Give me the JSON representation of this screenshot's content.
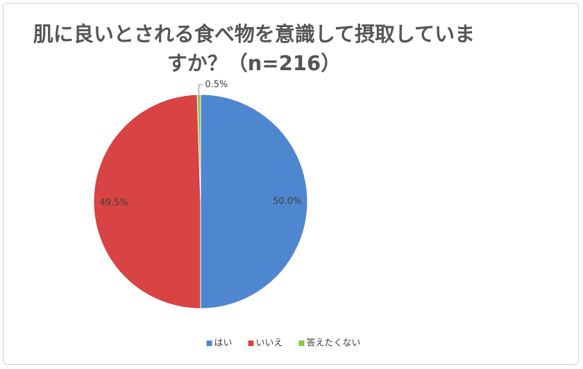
{
  "chart_data": {
    "type": "pie",
    "title": "肌に良いとされる食べ物を意識して摂取していますか？（n=216）",
    "categories": [
      "はい",
      "いいえ",
      "答えたくない"
    ],
    "values": [
      50.0,
      49.5,
      0.5
    ],
    "value_labels": [
      "50.0%",
      "49.5%",
      "0.5%"
    ],
    "colors": [
      "#4f86d0",
      "#d84343",
      "#8dc63f"
    ],
    "legend": "bottom"
  }
}
